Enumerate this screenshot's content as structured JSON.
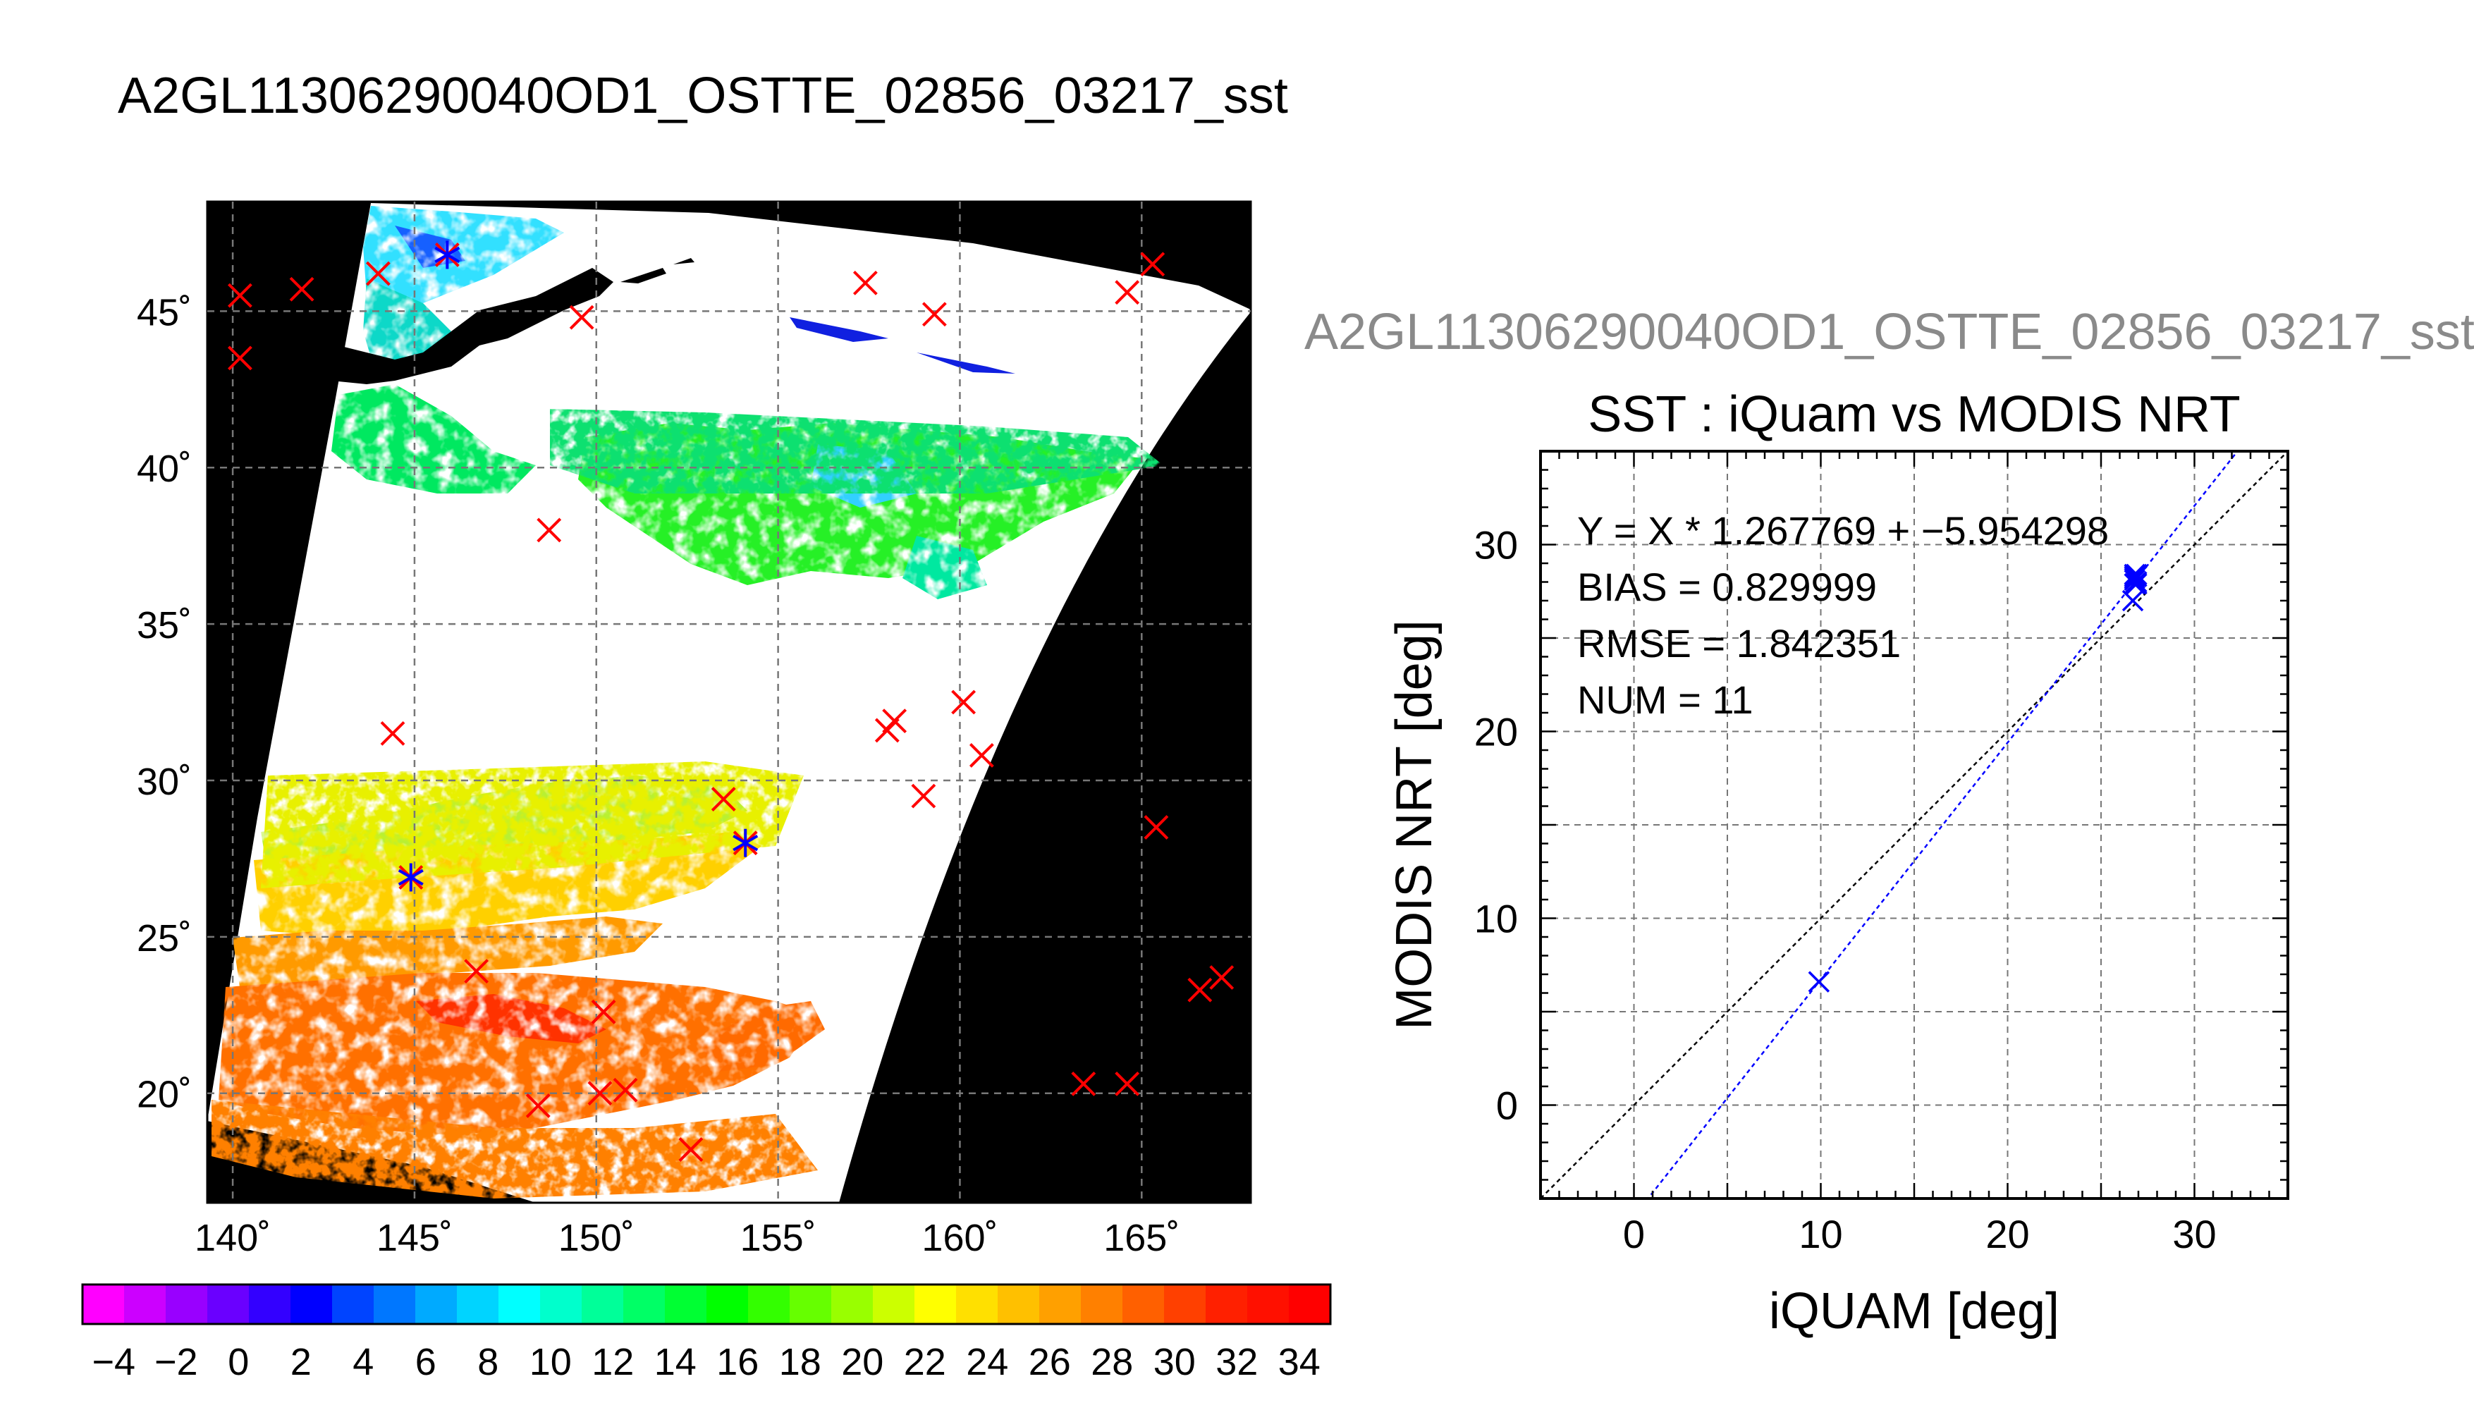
{
  "map_title": "A2GL11306290040OD1_OSTTE_02856_03217_sst",
  "scatter_suptitle": "A2GL11306290040OD1_OSTTE_02856_03217_sst",
  "colors": {
    "land": "#000000",
    "match_marker": "#ff0000",
    "collocated_marker": "#0000ff",
    "fit_line": "#0000ff",
    "one_to_one_line": "#000000",
    "grid": "#777777"
  },
  "chart_data": [
    {
      "type": "heatmap",
      "title": "A2GL11306290040OD1_OSTTE_02856_03217_sst",
      "x_ticks": [
        "140˚",
        "145˚",
        "150˚",
        "155˚",
        "160˚",
        "165˚"
      ],
      "y_ticks": [
        "20˚",
        "25˚",
        "30˚",
        "35˚",
        "40˚",
        "45˚"
      ],
      "x_tick_values": [
        140,
        145,
        150,
        155,
        160,
        165
      ],
      "y_tick_values": [
        20,
        25,
        30,
        35,
        40,
        45
      ],
      "xlim": [
        139.3,
        168
      ],
      "ylim": [
        16.5,
        48.5
      ],
      "grid": true,
      "colorbar": {
        "labels": [
          "−4",
          "−2",
          "0",
          "2",
          "4",
          "6",
          "8",
          "10",
          "12",
          "14",
          "16",
          "18",
          "20",
          "22",
          "24",
          "26",
          "28",
          "30",
          "32",
          "34"
        ],
        "values": [
          -4,
          -2,
          0,
          2,
          4,
          6,
          8,
          10,
          12,
          14,
          16,
          18,
          20,
          22,
          24,
          26,
          28,
          30,
          32,
          34
        ],
        "range": [
          -5,
          35
        ]
      },
      "match_points": [
        {
          "lon": 140.2,
          "lat": 45.5
        },
        {
          "lon": 141.9,
          "lat": 45.7
        },
        {
          "lon": 140.2,
          "lat": 43.5
        },
        {
          "lon": 144.0,
          "lat": 46.2
        },
        {
          "lon": 145.9,
          "lat": 46.8
        },
        {
          "lon": 149.6,
          "lat": 44.8
        },
        {
          "lon": 157.4,
          "lat": 45.9
        },
        {
          "lon": 159.3,
          "lat": 44.9
        },
        {
          "lon": 164.6,
          "lat": 45.6
        },
        {
          "lon": 165.3,
          "lat": 46.5
        },
        {
          "lon": 148.7,
          "lat": 38.0
        },
        {
          "lon": 144.4,
          "lat": 31.5
        },
        {
          "lon": 158.2,
          "lat": 31.9
        },
        {
          "lon": 158.0,
          "lat": 31.6
        },
        {
          "lon": 160.1,
          "lat": 32.5
        },
        {
          "lon": 160.6,
          "lat": 30.8
        },
        {
          "lon": 159.0,
          "lat": 29.5
        },
        {
          "lon": 153.5,
          "lat": 29.4
        },
        {
          "lon": 154.1,
          "lat": 28.0
        },
        {
          "lon": 144.9,
          "lat": 26.9
        },
        {
          "lon": 165.4,
          "lat": 28.5
        },
        {
          "lon": 146.7,
          "lat": 23.9
        },
        {
          "lon": 150.2,
          "lat": 22.6
        },
        {
          "lon": 166.6,
          "lat": 23.3
        },
        {
          "lon": 167.2,
          "lat": 23.7
        },
        {
          "lon": 163.4,
          "lat": 20.3
        },
        {
          "lon": 164.6,
          "lat": 20.3
        },
        {
          "lon": 148.4,
          "lat": 19.6
        },
        {
          "lon": 150.1,
          "lat": 20.0
        },
        {
          "lon": 150.8,
          "lat": 20.1
        },
        {
          "lon": 152.6,
          "lat": 18.2
        }
      ],
      "collocated_points": [
        {
          "lon": 145.9,
          "lat": 46.8
        },
        {
          "lon": 144.9,
          "lat": 26.9
        },
        {
          "lon": 154.1,
          "lat": 28.0
        }
      ]
    },
    {
      "type": "scatter",
      "title": "SST : iQuam vs MODIS NRT",
      "xlabel": "iQUAM [deg]",
      "ylabel": "MODIS NRT [deg]",
      "xlim": [
        -5,
        35
      ],
      "ylim": [
        -5,
        35
      ],
      "x_ticks": [
        "0",
        "10",
        "20",
        "30"
      ],
      "y_ticks": [
        "0",
        "10",
        "20",
        "30"
      ],
      "x_tick_values": [
        0,
        10,
        20,
        30
      ],
      "y_tick_values": [
        0,
        10,
        20,
        30
      ],
      "grid": true,
      "annotations": [
        "Y = X * 1.267769 + −5.954298",
        "BIAS = 0.829999",
        "RMSE = 1.842351",
        "NUM = 11"
      ],
      "fit": {
        "slope": 1.267769,
        "intercept": -5.954298
      },
      "points": [
        {
          "x": 9.9,
          "y": 6.6
        },
        {
          "x": 26.7,
          "y": 27.0
        },
        {
          "x": 26.8,
          "y": 27.9
        },
        {
          "x": 26.8,
          "y": 28.1
        },
        {
          "x": 26.9,
          "y": 28.3
        },
        {
          "x": 26.9,
          "y": 28.4
        },
        {
          "x": 26.8,
          "y": 28.2
        },
        {
          "x": 26.9,
          "y": 27.9
        },
        {
          "x": 26.8,
          "y": 28.4
        },
        {
          "x": 26.9,
          "y": 28.0
        },
        {
          "x": 26.8,
          "y": 28.3
        }
      ]
    }
  ]
}
